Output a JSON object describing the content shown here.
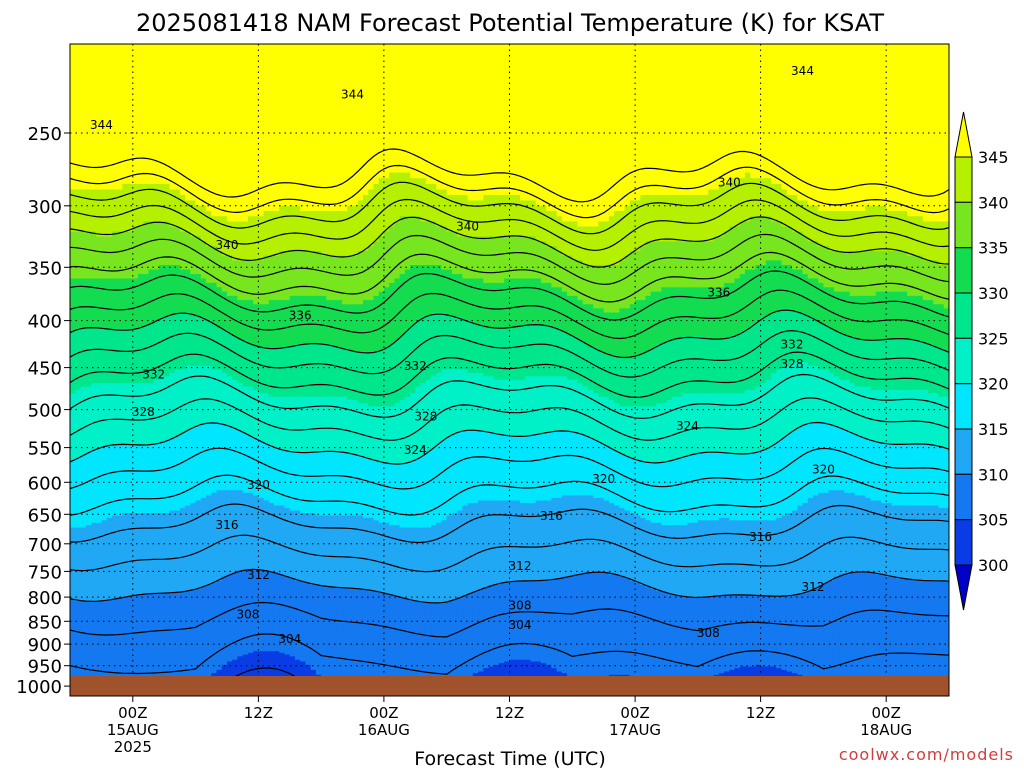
{
  "chart_data": {
    "type": "heatmap",
    "title": "2025081418 NAM Forecast Potential Temperature (K) for KSAT",
    "xlabel": "Forecast Time (UTC)",
    "ylabel": "",
    "credit": "coolwx.com/models",
    "y_scale": "pressure (log-p, inverted)",
    "y_ticks": [
      250,
      300,
      350,
      400,
      450,
      500,
      550,
      600,
      650,
      700,
      750,
      800,
      850,
      900,
      950,
      1000
    ],
    "x_ticks": [
      {
        "hour": 6,
        "line1": "00Z",
        "line2": "15AUG",
        "line3": "2025"
      },
      {
        "hour": 18,
        "line1": "12Z",
        "line2": "",
        "line3": ""
      },
      {
        "hour": 30,
        "line1": "00Z",
        "line2": "16AUG",
        "line3": ""
      },
      {
        "hour": 42,
        "line1": "12Z",
        "line2": "",
        "line3": ""
      },
      {
        "hour": 54,
        "line1": "00Z",
        "line2": "17AUG",
        "line3": ""
      },
      {
        "hour": 66,
        "line1": "12Z",
        "line2": "",
        "line3": ""
      },
      {
        "hour": 78,
        "line1": "00Z",
        "line2": "18AUG",
        "line3": ""
      }
    ],
    "xlim_hours": [
      0,
      84
    ],
    "ylim_hpa": [
      200,
      1025
    ],
    "grid": true,
    "colorbar": {
      "levels": [
        300,
        305,
        310,
        315,
        320,
        325,
        330,
        335,
        340,
        345
      ],
      "colors": [
        "#0000c8",
        "#0a3ce6",
        "#1478f0",
        "#20a8f5",
        "#00e6ff",
        "#00f0c8",
        "#00e68c",
        "#14dc50",
        "#78e61e",
        "#b4f000",
        "#ffff00"
      ],
      "labels": [
        "345",
        "340",
        "335",
        "330",
        "325",
        "320",
        "315",
        "310",
        "305",
        "300"
      ]
    },
    "contour_labels": [
      {
        "text": "344",
        "hour": 3,
        "p": 245
      },
      {
        "text": "344",
        "hour": 27,
        "p": 227
      },
      {
        "text": "344",
        "hour": 70,
        "p": 214
      },
      {
        "text": "340",
        "hour": 63,
        "p": 283
      },
      {
        "text": "340",
        "hour": 38,
        "p": 316
      },
      {
        "text": "340",
        "hour": 15,
        "p": 331
      },
      {
        "text": "336",
        "hour": 22,
        "p": 395
      },
      {
        "text": "336",
        "hour": 62,
        "p": 373
      },
      {
        "text": "332",
        "hour": 69,
        "p": 425
      },
      {
        "text": "332",
        "hour": 33,
        "p": 448
      },
      {
        "text": "332",
        "hour": 8,
        "p": 458
      },
      {
        "text": "328",
        "hour": 69,
        "p": 446
      },
      {
        "text": "328",
        "hour": 34,
        "p": 509
      },
      {
        "text": "328",
        "hour": 7,
        "p": 503
      },
      {
        "text": "324",
        "hour": 59,
        "p": 521
      },
      {
        "text": "324",
        "hour": 33,
        "p": 553
      },
      {
        "text": "320",
        "hour": 18,
        "p": 604
      },
      {
        "text": "320",
        "hour": 51,
        "p": 595
      },
      {
        "text": "320",
        "hour": 72,
        "p": 581
      },
      {
        "text": "316",
        "hour": 15,
        "p": 668
      },
      {
        "text": "316",
        "hour": 46,
        "p": 653
      },
      {
        "text": "316",
        "hour": 66,
        "p": 688
      },
      {
        "text": "312",
        "hour": 18,
        "p": 757
      },
      {
        "text": "312",
        "hour": 43,
        "p": 740
      },
      {
        "text": "312",
        "hour": 71,
        "p": 780
      },
      {
        "text": "308",
        "hour": 17,
        "p": 836
      },
      {
        "text": "308",
        "hour": 43,
        "p": 817
      },
      {
        "text": "308",
        "hour": 61,
        "p": 875
      },
      {
        "text": "304",
        "hour": 21,
        "p": 888
      },
      {
        "text": "304",
        "hour": 43,
        "p": 858
      }
    ]
  }
}
